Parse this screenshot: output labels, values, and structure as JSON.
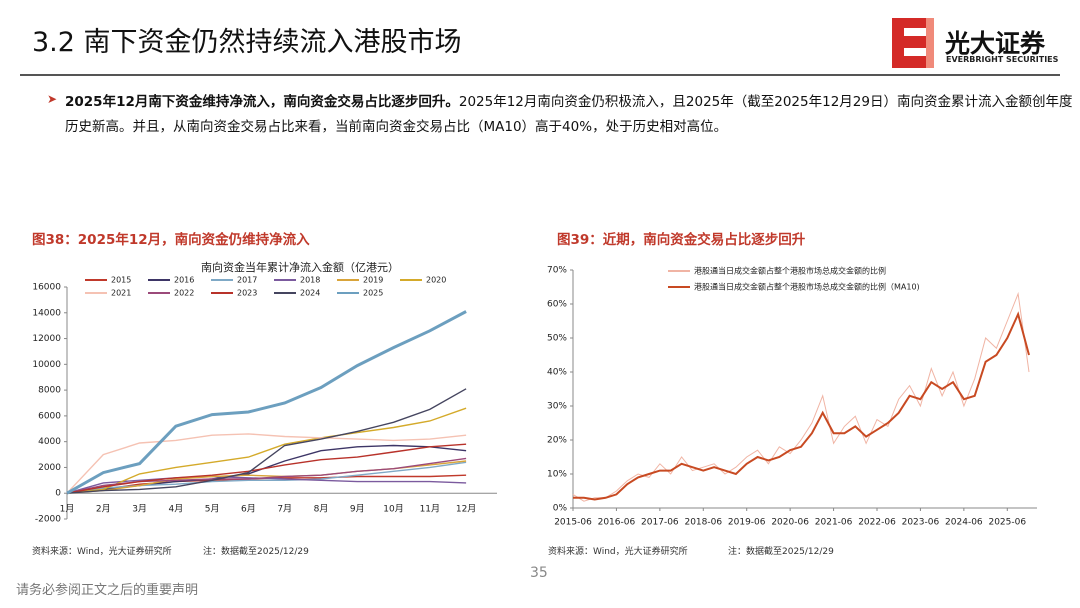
{
  "header": {
    "title": "3.2 南下资金仍然持续流入港股市场",
    "logo_cn": "光大证券",
    "logo_en": "EVERBRIGHT SECURITIES"
  },
  "bullet": {
    "bold": "2025年12月南下资金维持净流入，南向资金交易占比逐步回升。",
    "text": "2025年12月南向资金仍积极流入，且2025年（截至2025年12月29日）南向资金累计流入金额创年度历史新高。并且，从南向资金交易占比来看，当前南向资金交易占比（MA10）高于40%，处于历史相对高位。"
  },
  "figures": [
    {
      "label": "图38：2025年12月，南向资金仍维持净流入",
      "source": "资料来源：Wind，光大证券研究所",
      "note": "注：数据截至2025/12/29"
    },
    {
      "label": "图39：近期，南向资金交易占比逐步回升",
      "source": "资料来源：Wind，光大证券研究所",
      "note": "注：数据截至2025/12/29"
    }
  ],
  "chart_data": [
    {
      "type": "line",
      "title": "南向资金当年累计净流入金额（亿港元）",
      "categories": [
        "1月",
        "2月",
        "3月",
        "4月",
        "5月",
        "6月",
        "7月",
        "8月",
        "9月",
        "10月",
        "11月",
        "12月"
      ],
      "ylim": [
        -2000,
        16000
      ],
      "yticks": [
        -2000,
        0,
        2000,
        4000,
        6000,
        8000,
        10000,
        12000,
        14000,
        16000
      ],
      "series": [
        {
          "name": "2015",
          "color": "#c0392b",
          "values": [
            0,
            300,
            700,
            900,
            1000,
            1100,
            1200,
            1200,
            1300,
            1300,
            1300,
            1400
          ]
        },
        {
          "name": "2016",
          "color": "#3d3566",
          "values": [
            0,
            300,
            600,
            900,
            1100,
            1500,
            2500,
            3300,
            3600,
            3700,
            3600,
            3300
          ]
        },
        {
          "name": "2017",
          "color": "#7fa9c6",
          "values": [
            0,
            400,
            600,
            700,
            900,
            1000,
            1000,
            1100,
            1400,
            1700,
            2000,
            2400
          ]
        },
        {
          "name": "2018",
          "color": "#7b5a9e",
          "values": [
            0,
            800,
            1000,
            1200,
            1300,
            1200,
            1100,
            1000,
            900,
            900,
            900,
            800
          ]
        },
        {
          "name": "2019",
          "color": "#d9a43a",
          "values": [
            0,
            200,
            600,
            1100,
            1300,
            1400,
            1300,
            1400,
            1700,
            1900,
            2200,
            2500
          ]
        },
        {
          "name": "2020",
          "color": "#d4aa2a",
          "values": [
            0,
            300,
            1500,
            2000,
            2400,
            2800,
            3800,
            4300,
            4700,
            5100,
            5600,
            6600
          ]
        },
        {
          "name": "2021",
          "color": "#f5c2b3",
          "values": [
            0,
            3000,
            3900,
            4100,
            4500,
            4600,
            4400,
            4300,
            4200,
            4100,
            4200,
            4500
          ]
        },
        {
          "name": "2022",
          "color": "#9b4a7a",
          "values": [
            0,
            600,
            900,
            1000,
            1100,
            1100,
            1300,
            1400,
            1700,
            1900,
            2300,
            2700
          ]
        },
        {
          "name": "2023",
          "color": "#b8322a",
          "values": [
            0,
            500,
            900,
            1200,
            1400,
            1700,
            2200,
            2600,
            2800,
            3200,
            3600,
            3800
          ]
        },
        {
          "name": "2024",
          "color": "#45455f",
          "values": [
            0,
            200,
            300,
            500,
            1000,
            1600,
            3700,
            4200,
            4800,
            5500,
            6500,
            8100
          ]
        },
        {
          "name": "2025",
          "color": "#6c9fbf",
          "values": [
            0,
            1600,
            2300,
            5200,
            6100,
            6300,
            7000,
            8200,
            9900,
            11300,
            12600,
            14100
          ]
        }
      ]
    },
    {
      "type": "line",
      "x": [
        "2015-06",
        "2015-09",
        "2015-12",
        "2016-03",
        "2016-06",
        "2016-09",
        "2016-12",
        "2017-03",
        "2017-06",
        "2017-09",
        "2017-12",
        "2018-03",
        "2018-06",
        "2018-09",
        "2018-12",
        "2019-03",
        "2019-06",
        "2019-09",
        "2019-12",
        "2020-03",
        "2020-06",
        "2020-09",
        "2020-12",
        "2021-03",
        "2021-06",
        "2021-09",
        "2021-12",
        "2022-03",
        "2022-06",
        "2022-09",
        "2022-12",
        "2023-03",
        "2023-06",
        "2023-09",
        "2023-12",
        "2024-03",
        "2024-06",
        "2024-09",
        "2024-12",
        "2025-03",
        "2025-06",
        "2025-09",
        "2025-12"
      ],
      "xticks": [
        "2015-06",
        "2016-06",
        "2017-06",
        "2018-06",
        "2019-06",
        "2020-06",
        "2021-06",
        "2022-06",
        "2023-06",
        "2024-06",
        "2025-06"
      ],
      "ylim": [
        0,
        70
      ],
      "yticks": [
        {
          "value": 0,
          "label": "0%"
        },
        {
          "value": 10,
          "label": "10%"
        },
        {
          "value": 20,
          "label": "20%"
        },
        {
          "value": 30,
          "label": "30%"
        },
        {
          "value": 40,
          "label": "40%"
        },
        {
          "value": 50,
          "label": "50%"
        },
        {
          "value": 60,
          "label": "60%"
        },
        {
          "value": 70,
          "label": "70%"
        }
      ],
      "series": [
        {
          "name": "港股通当日成交金额占整个港股市场总成交金额的比例",
          "color": "#f0b4a4",
          "values": [
            4,
            2,
            3,
            3,
            5,
            8,
            10,
            9,
            13,
            10,
            15,
            11,
            12,
            13,
            10,
            12,
            15,
            17,
            13,
            18,
            16,
            20,
            25,
            33,
            19,
            24,
            27,
            19,
            26,
            24,
            32,
            36,
            30,
            41,
            33,
            40,
            30,
            38,
            50,
            47,
            55,
            63,
            40
          ]
        },
        {
          "name": "港股通当日成交金额占整个港股市场总成交金额的比例（MA10)",
          "color": "#c84a22",
          "values": [
            3,
            3,
            2.5,
            3,
            4,
            7,
            9,
            10,
            11,
            11,
            13,
            12,
            11,
            12,
            11,
            10,
            13,
            15,
            14,
            15,
            17,
            18,
            22,
            28,
            22,
            22,
            24,
            21,
            23,
            25,
            28,
            33,
            32,
            37,
            35,
            37,
            32,
            33,
            43,
            45,
            50,
            57,
            45
          ]
        }
      ]
    }
  ],
  "page_number": "35",
  "disclaimer": "请务必参阅正文之后的重要声明"
}
